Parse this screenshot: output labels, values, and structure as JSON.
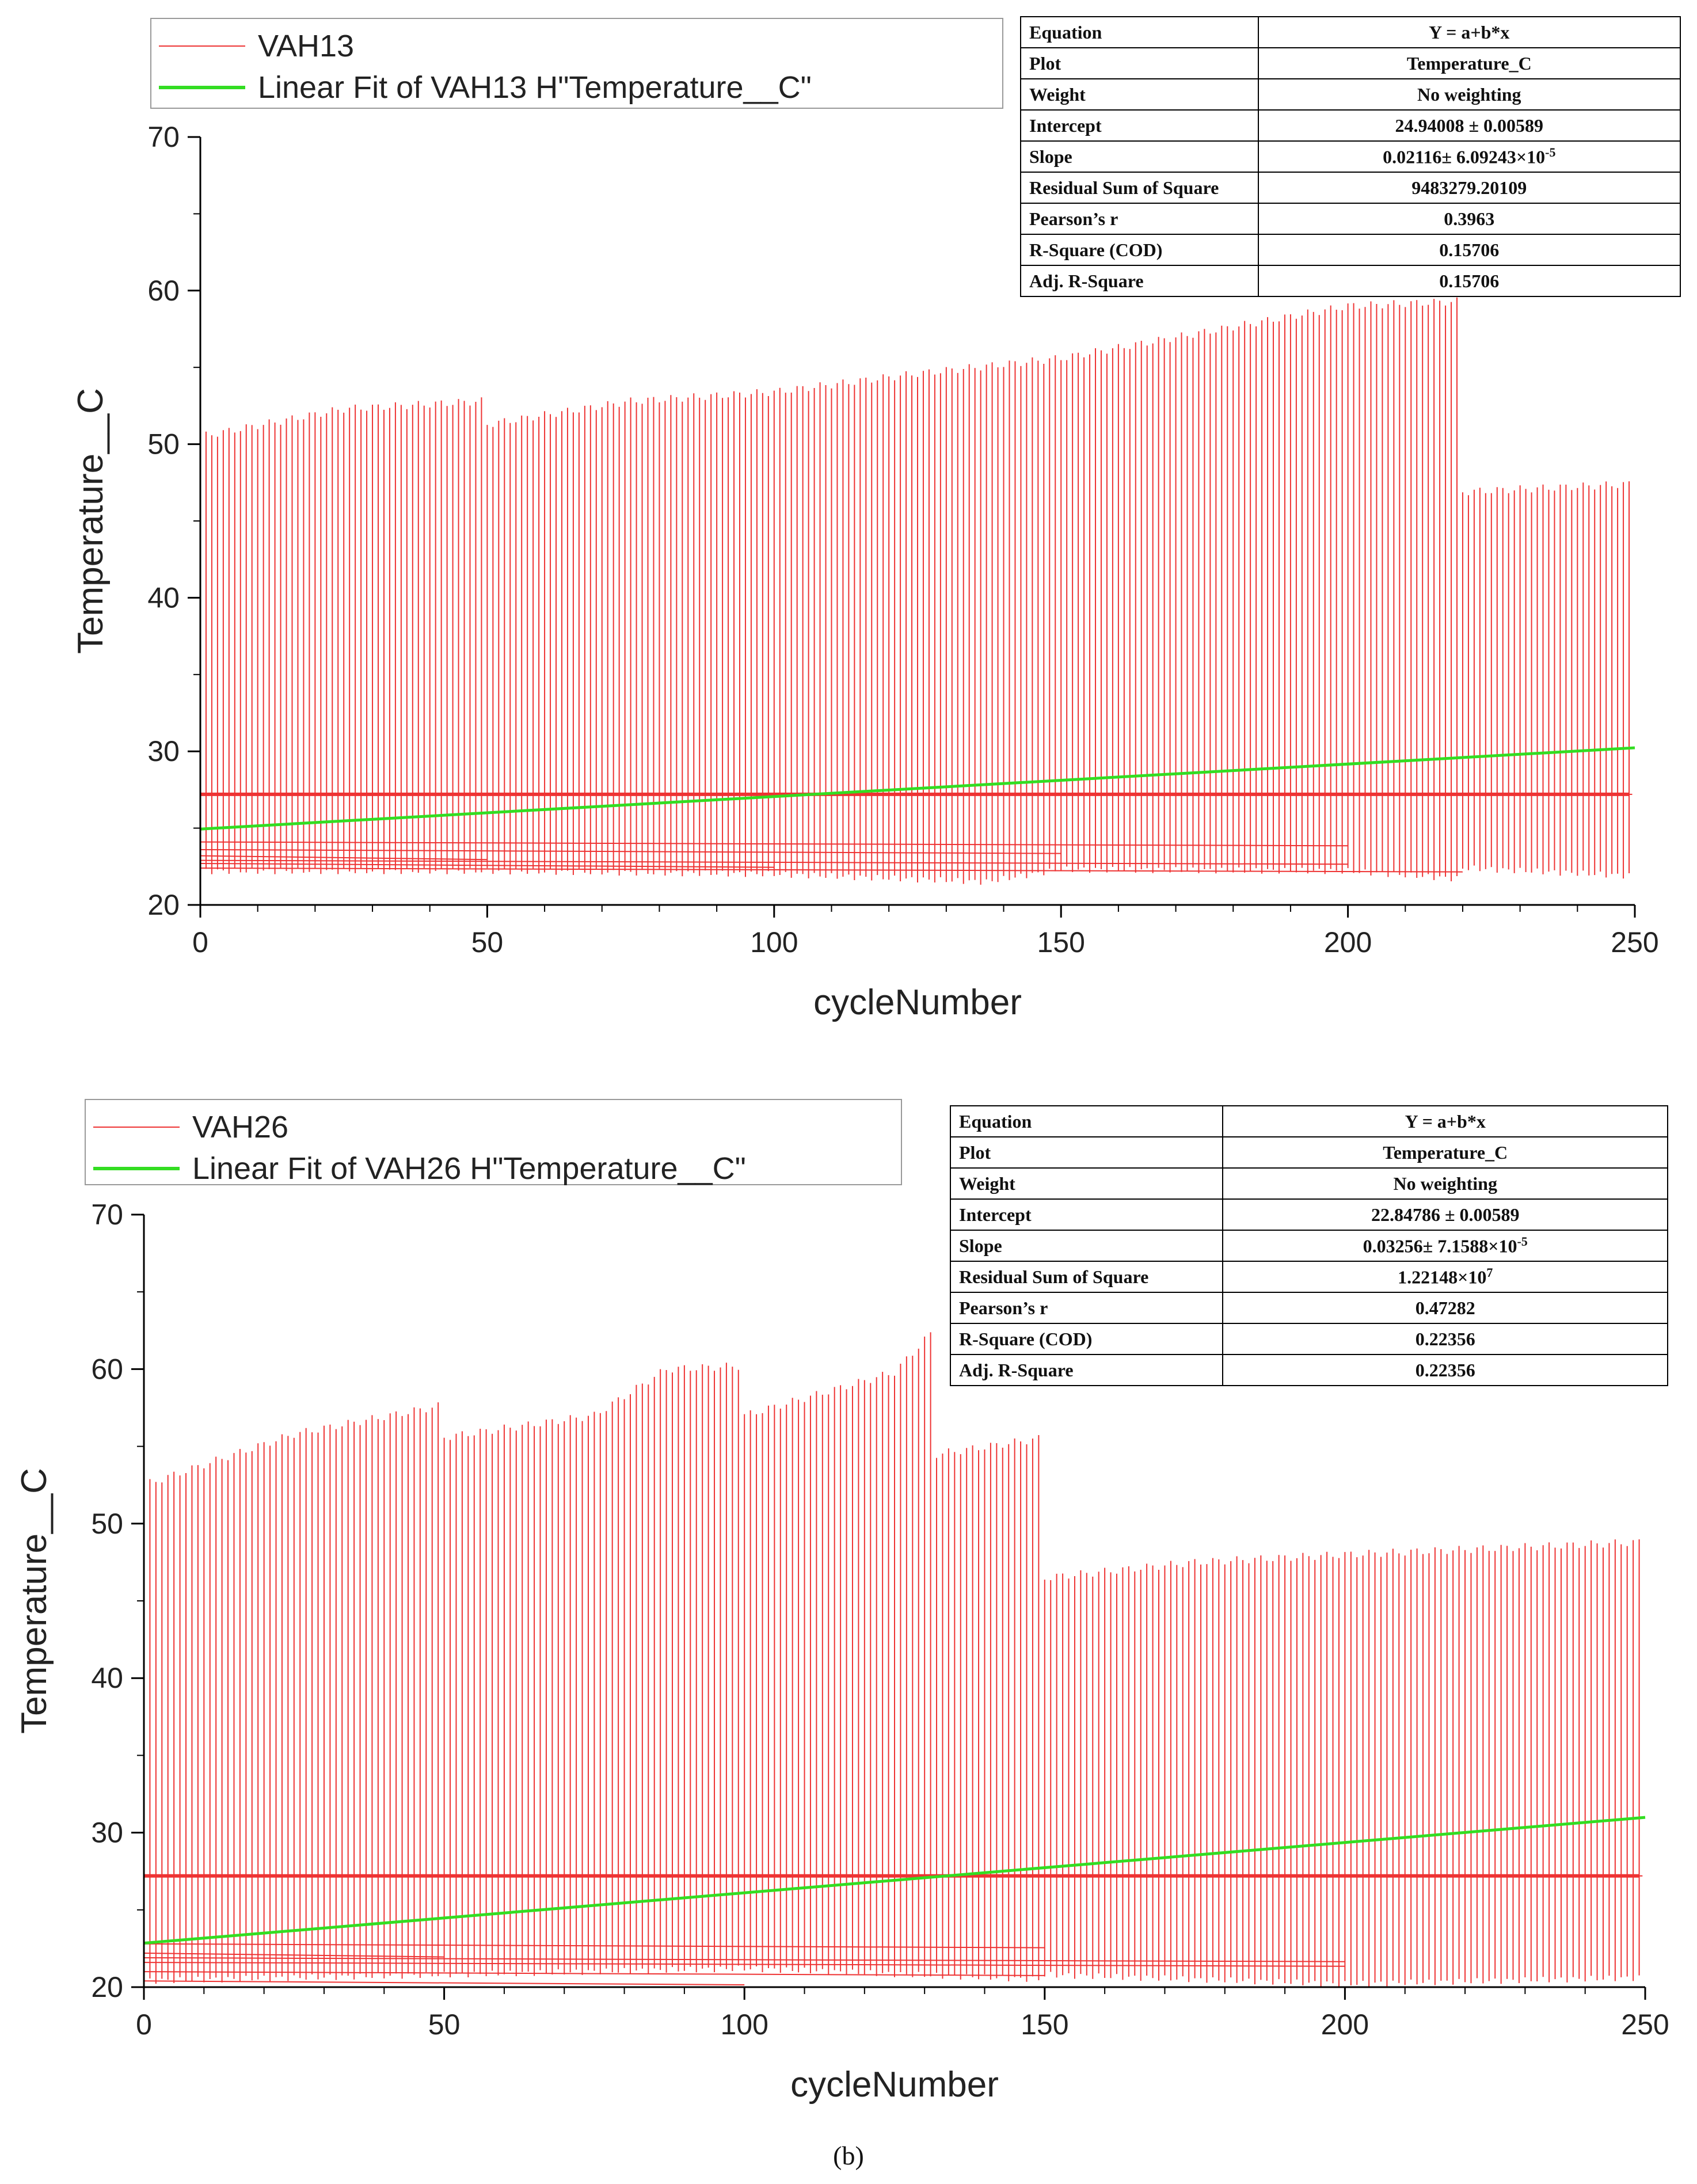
{
  "caption": "(b)",
  "chart_data": [
    {
      "type": "line",
      "series": [
        {
          "name": "VAH13",
          "color": "#ee3333",
          "style": "cyclic-oscillation",
          "cycle_max": 249,
          "plateau_value": 27.2,
          "upper_envelope": [
            [
              0,
              50.5
            ],
            [
              25,
              52.3
            ],
            [
              49,
              52.8
            ],
            [
              50,
              51.3
            ],
            [
              75,
              52.8
            ],
            [
              100,
              53.4
            ],
            [
              125,
              54.6
            ],
            [
              150,
              55.6
            ],
            [
              175,
              57.3
            ],
            [
              200,
              59.0
            ],
            [
              219,
              59.3
            ],
            [
              220,
              46.9
            ],
            [
              249,
              47.4
            ]
          ],
          "lower_envelope": [
            [
              0,
              22.2
            ],
            [
              50,
              22.2
            ],
            [
              100,
              22.0
            ],
            [
              137,
              21.5
            ],
            [
              150,
              22.3
            ],
            [
              200,
              22.2
            ],
            [
              219,
              21.7
            ],
            [
              220,
              22.4
            ],
            [
              249,
              21.9
            ]
          ]
        },
        {
          "name": "Linear Fit of VAH13 H\"Temperature__C\"",
          "color": "#33dd22",
          "intercept": 24.94008,
          "slope": 0.02116
        }
      ],
      "xlabel": "cycleNumber",
      "ylabel": "Temperature__C",
      "xlim": [
        0,
        250
      ],
      "ylim": [
        20,
        70
      ],
      "xticks": [
        "0",
        "50",
        "100",
        "150",
        "200",
        "250"
      ],
      "yticks": [
        "20",
        "30",
        "40",
        "50",
        "60",
        "70"
      ],
      "legend": [
        "VAH13",
        "Linear Fit of VAH13 H\"Temperature__C\""
      ],
      "stats_table": [
        {
          "label": "Equation",
          "value": "Y = a+b*x"
        },
        {
          "label": "Plot",
          "value": "Temperature_C"
        },
        {
          "label": "Weight",
          "value": "No weighting"
        },
        {
          "label": "Intercept",
          "value": "24.94008 ± 0.00589"
        },
        {
          "label": "Slope",
          "value": "0.02116± 6.09243×10",
          "sup": "-5"
        },
        {
          "label": "Residual Sum of Square",
          "value": "9483279.20109"
        },
        {
          "label": "Pearson’s r",
          "value": "0.3963"
        },
        {
          "label": "R-Square (COD)",
          "value": "0.15706"
        },
        {
          "label": "Adj. R-Square",
          "value": "0.15706"
        }
      ]
    },
    {
      "type": "line",
      "series": [
        {
          "name": "VAH26",
          "color": "#ee3333",
          "style": "cyclic-oscillation",
          "cycle_max": 249,
          "plateau_value": 27.2,
          "upper_envelope": [
            [
              0,
              52.5
            ],
            [
              25,
              55.8
            ],
            [
              49,
              57.6
            ],
            [
              50,
              55.6
            ],
            [
              75,
              57.0
            ],
            [
              87,
              60.0
            ],
            [
              99,
              60.2
            ],
            [
              100,
              57.0
            ],
            [
              125,
              59.8
            ],
            [
              131,
              62.3
            ],
            [
              132,
              54.5
            ],
            [
              149,
              55.5
            ],
            [
              150,
              46.5
            ],
            [
              175,
              47.5
            ],
            [
              200,
              48.0
            ],
            [
              249,
              48.8
            ]
          ],
          "lower_envelope": [
            [
              0,
              20.4
            ],
            [
              50,
              20.8
            ],
            [
              100,
              21.2
            ],
            [
              149,
              20.5
            ],
            [
              150,
              20.8
            ],
            [
              200,
              20.2
            ],
            [
              249,
              20.6
            ]
          ]
        },
        {
          "name": "Linear Fit of VAH26 H\"Temperature__C\"",
          "color": "#33dd22",
          "intercept": 22.84786,
          "slope": 0.03256
        }
      ],
      "xlabel": "cycleNumber",
      "ylabel": "Temperature__C",
      "xlim": [
        0,
        250
      ],
      "ylim": [
        20,
        70
      ],
      "xticks": [
        "0",
        "50",
        "100",
        "150",
        "200",
        "250"
      ],
      "yticks": [
        "20",
        "30",
        "40",
        "50",
        "60",
        "70"
      ],
      "legend": [
        "VAH26",
        "Linear Fit of VAH26 H\"Temperature__C\""
      ],
      "stats_table": [
        {
          "label": "Equation",
          "value": "Y = a+b*x"
        },
        {
          "label": "Plot",
          "value": "Temperature_C"
        },
        {
          "label": "Weight",
          "value": "No weighting"
        },
        {
          "label": "Intercept",
          "value": "22.84786 ± 0.00589"
        },
        {
          "label": "Slope",
          "value": "0.03256± 7.1588×10",
          "sup": "-5"
        },
        {
          "label": "Residual Sum of Square",
          "value": "1.22148×10",
          "sup": "7"
        },
        {
          "label": "Pearson’s r",
          "value": "0.47282"
        },
        {
          "label": "R-Square (COD)",
          "value": "0.22356"
        },
        {
          "label": "Adj. R-Square",
          "value": "0.22356"
        }
      ]
    }
  ]
}
